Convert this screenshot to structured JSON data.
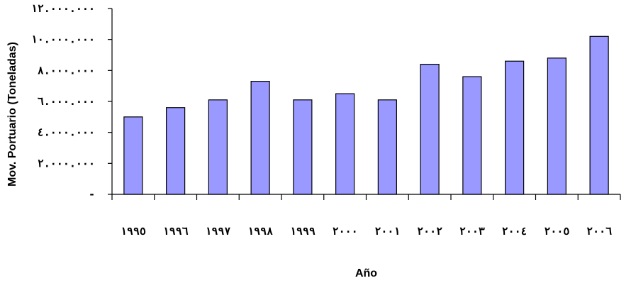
{
  "chart_data": {
    "type": "bar",
    "xlabel": "Año",
    "ylabel": "Mov. Portuario (Toneladas)",
    "categories": [
      "١٩٩٥",
      "١٩٩٦",
      "١٩٩٧",
      "١٩٩٨",
      "١٩٩٩",
      "٢٠٠٠",
      "٢٠٠١",
      "٢٠٠٢",
      "٢٠٠٣",
      "٢٠٠٤",
      "٢٠٠٥",
      "٢٠٠٦"
    ],
    "values": [
      5000000,
      5600000,
      6100000,
      7300000,
      6100000,
      6500000,
      6100000,
      8400000,
      7600000,
      8600000,
      8800000,
      10200000
    ],
    "ylim": [
      0,
      12000000
    ],
    "ytick_values": [
      0,
      2000000,
      4000000,
      6000000,
      8000000,
      10000000,
      12000000
    ],
    "ytick_labels": [
      "-",
      "٢.٠٠٠.٠٠٠",
      "٤.٠٠٠.٠٠٠",
      "٦.٠٠٠.٠٠٠",
      "٨.٠٠٠.٠٠٠",
      "١٠.٠٠٠.٠٠٠",
      "١٢.٠٠٠.٠٠٠"
    ],
    "bar_color": "#9999ff",
    "grid": false,
    "legend": "none"
  }
}
